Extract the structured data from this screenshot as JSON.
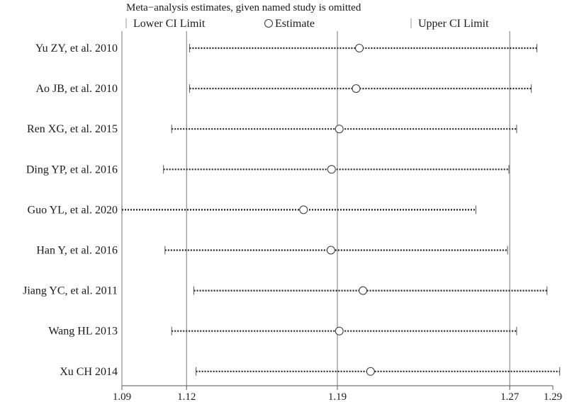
{
  "chart_data": {
    "type": "forest",
    "title": "Meta−analysis estimates, given named study is omitted",
    "legend": {
      "lower": "Lower CI Limit",
      "estimate": "Estimate",
      "upper": "Upper CI Limit"
    },
    "xlim": [
      1.09,
      1.29
    ],
    "ticks": [
      "1.09",
      "1.12",
      "1.19",
      "1.27",
      "1.29"
    ],
    "tick_values": [
      1.09,
      1.12,
      1.19,
      1.27,
      1.29
    ],
    "reference_lines": [
      1.12,
      1.19,
      1.27
    ],
    "studies": [
      {
        "label": "Yu ZY, et al. 2010",
        "lower": 1.1214,
        "estimate": 1.2002,
        "upper": 1.2826
      },
      {
        "label": "Ao JB, et al. 2010",
        "lower": 1.1214,
        "estimate": 1.1987,
        "upper": 1.28
      },
      {
        "label": "Ren XG, et al. 2015",
        "lower": 1.1131,
        "estimate": 1.1909,
        "upper": 1.2732
      },
      {
        "label": "Ding YP, et al. 2016",
        "lower": 1.1093,
        "estimate": 1.1873,
        "upper": 1.2696
      },
      {
        "label": "Guo YL, et al. 2020",
        "lower": 1.09,
        "estimate": 1.1743,
        "upper": 1.2543
      },
      {
        "label": "Han Y, et al. 2016",
        "lower": 1.11,
        "estimate": 1.187,
        "upper": 1.269
      },
      {
        "label": "Jiang YC, et al. 2011",
        "lower": 1.1234,
        "estimate": 1.2019,
        "upper": 1.2873
      },
      {
        "label": "Wang HL 2013",
        "lower": 1.1131,
        "estimate": 1.1909,
        "upper": 1.2732
      },
      {
        "label": "Xu CH 2014",
        "lower": 1.1244,
        "estimate": 1.2054,
        "upper": 1.2932
      }
    ]
  }
}
